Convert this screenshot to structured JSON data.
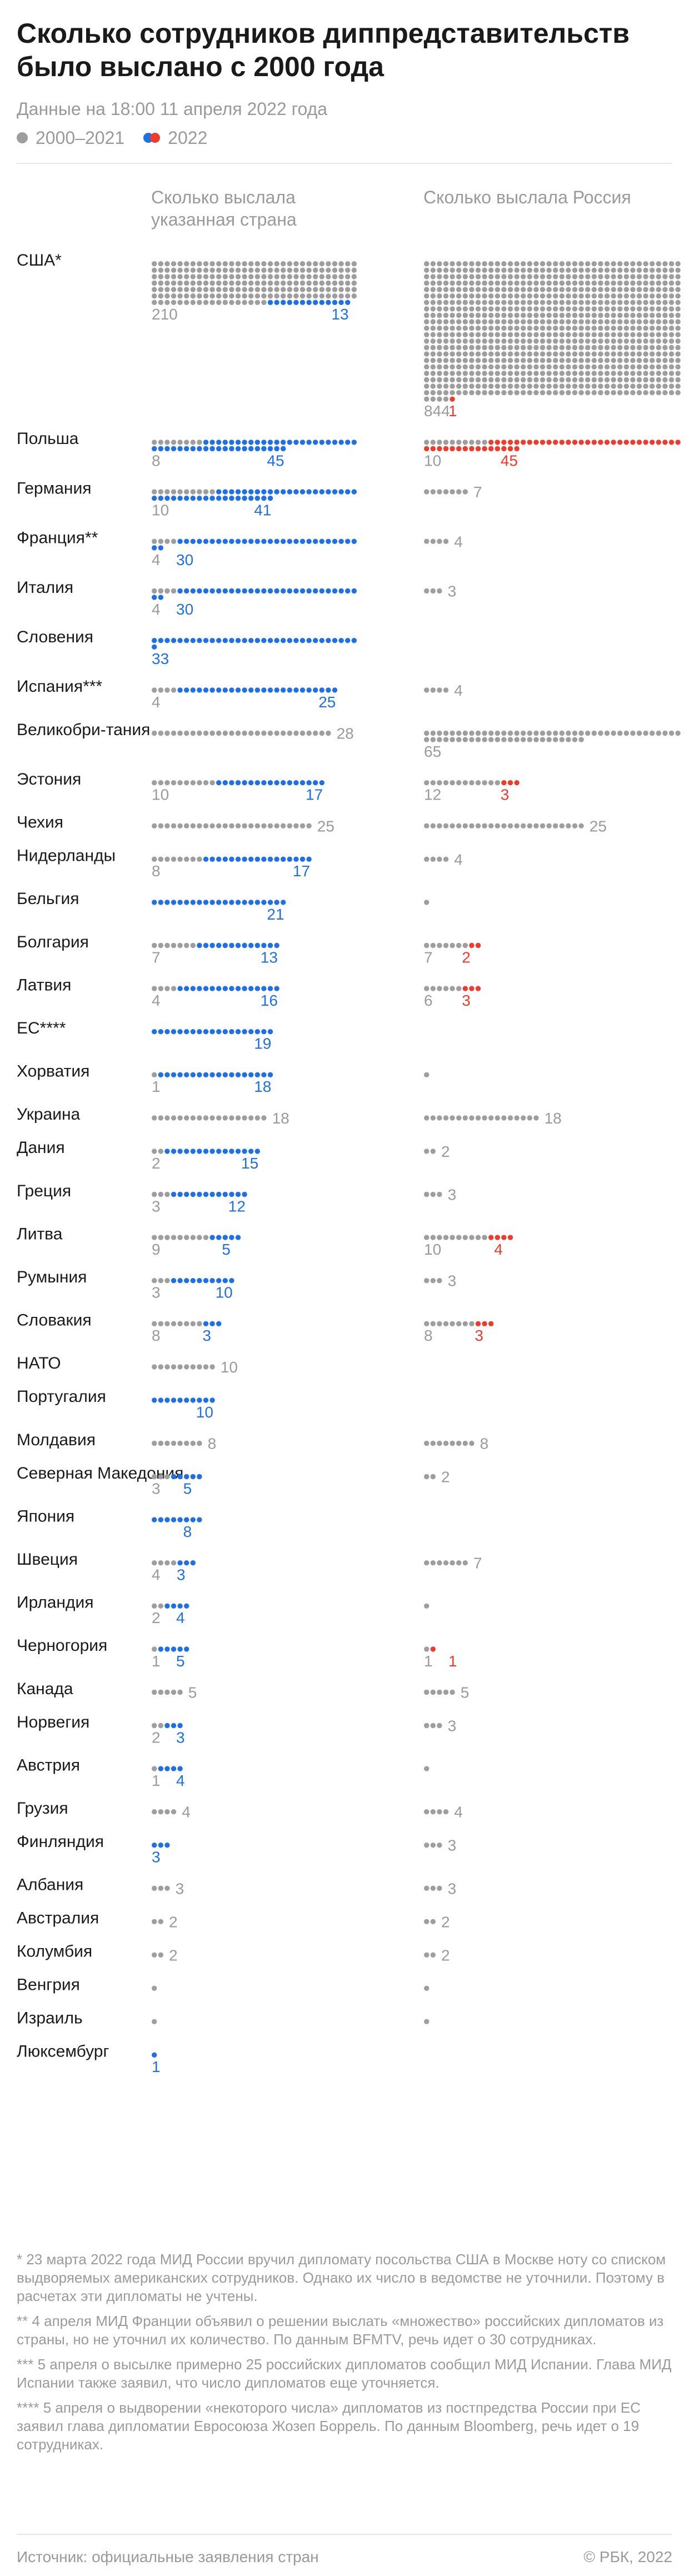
{
  "header": {
    "title": "Сколько сотрудников диппредставительств было выслано с 2000 года",
    "subtitle": "Данные на 18:00 11 апреля 2022 года",
    "legend": {
      "old": "2000–2021",
      "new": "2022"
    }
  },
  "columns": {
    "left": "Сколько выслала указанная страна",
    "right": "Сколько выслала Россия"
  },
  "colors": {
    "old": "#9e9e9e",
    "new_country": "#1f6fe5",
    "new_russia": "#ef3b2c"
  },
  "chart_data": {
    "type": "dot-matrix",
    "series": [
      {
        "name": "2000–2021"
      },
      {
        "name": "2022"
      }
    ],
    "rows": [
      {
        "country": "США*",
        "country_old": 210,
        "country_new": 13,
        "russia_old": 844,
        "russia_new": 1
      },
      {
        "country": "Польша",
        "country_old": 8,
        "country_new": 45,
        "russia_old": 10,
        "russia_new": 45
      },
      {
        "country": "Германия",
        "country_old": 10,
        "country_new": 41,
        "russia_old": 7,
        "russia_new": 0
      },
      {
        "country": "Франция**",
        "country_old": 4,
        "country_new": 30,
        "russia_old": 4,
        "russia_new": 0
      },
      {
        "country": "Италия",
        "country_old": 4,
        "country_new": 30,
        "russia_old": 3,
        "russia_new": 0
      },
      {
        "country": "Словения",
        "country_old": 0,
        "country_new": 33,
        "russia_old": 0,
        "russia_new": 0
      },
      {
        "country": "Испания***",
        "country_old": 4,
        "country_new": 25,
        "russia_old": 4,
        "russia_new": 0
      },
      {
        "country": "Великобри-тания",
        "country_old": 28,
        "country_new": 0,
        "russia_old": 65,
        "russia_new": 0
      },
      {
        "country": "Эстония",
        "country_old": 10,
        "country_new": 17,
        "russia_old": 12,
        "russia_new": 3
      },
      {
        "country": "Чехия",
        "country_old": 25,
        "country_new": 0,
        "russia_old": 25,
        "russia_new": 0
      },
      {
        "country": "Нидерланды",
        "country_old": 8,
        "country_new": 17,
        "russia_old": 4,
        "russia_new": 0
      },
      {
        "country": "Бельгия",
        "country_old": 0,
        "country_new": 21,
        "russia_old": 1,
        "russia_new": 0
      },
      {
        "country": "Болгария",
        "country_old": 7,
        "country_new": 13,
        "russia_old": 7,
        "russia_new": 2
      },
      {
        "country": "Латвия",
        "country_old": 4,
        "country_new": 16,
        "russia_old": 6,
        "russia_new": 3
      },
      {
        "country": "ЕС****",
        "country_old": 0,
        "country_new": 19,
        "russia_old": 0,
        "russia_new": 0
      },
      {
        "country": "Хорватия",
        "country_old": 1,
        "country_new": 18,
        "russia_old": 1,
        "russia_new": 0
      },
      {
        "country": "Украина",
        "country_old": 18,
        "country_new": 0,
        "russia_old": 18,
        "russia_new": 0
      },
      {
        "country": "Дания",
        "country_old": 2,
        "country_new": 15,
        "russia_old": 2,
        "russia_new": 0
      },
      {
        "country": "Греция",
        "country_old": 3,
        "country_new": 12,
        "russia_old": 3,
        "russia_new": 0
      },
      {
        "country": "Литва",
        "country_old": 9,
        "country_new": 5,
        "russia_old": 10,
        "russia_new": 4
      },
      {
        "country": "Румыния",
        "country_old": 3,
        "country_new": 10,
        "russia_old": 3,
        "russia_new": 0
      },
      {
        "country": "Словакия",
        "country_old": 8,
        "country_new": 3,
        "russia_old": 8,
        "russia_new": 3
      },
      {
        "country": "НАТО",
        "country_old": 10,
        "country_new": 0,
        "russia_old": 0,
        "russia_new": 0
      },
      {
        "country": "Португалия",
        "country_old": 0,
        "country_new": 10,
        "russia_old": 0,
        "russia_new": 0
      },
      {
        "country": "Молдавия",
        "country_old": 8,
        "country_new": 0,
        "russia_old": 8,
        "russia_new": 0
      },
      {
        "country": "Северная Македония",
        "country_old": 3,
        "country_new": 5,
        "russia_old": 2,
        "russia_new": 0
      },
      {
        "country": "Япония",
        "country_old": 0,
        "country_new": 8,
        "russia_old": 0,
        "russia_new": 0
      },
      {
        "country": "Швеция",
        "country_old": 4,
        "country_new": 3,
        "russia_old": 7,
        "russia_new": 0
      },
      {
        "country": "Ирландия",
        "country_old": 2,
        "country_new": 4,
        "russia_old": 1,
        "russia_new": 0
      },
      {
        "country": "Черногория",
        "country_old": 1,
        "country_new": 5,
        "russia_old": 1,
        "russia_new": 1
      },
      {
        "country": "Канада",
        "country_old": 5,
        "country_new": 0,
        "russia_old": 5,
        "russia_new": 0
      },
      {
        "country": "Норвегия",
        "country_old": 2,
        "country_new": 3,
        "russia_old": 3,
        "russia_new": 0
      },
      {
        "country": "Австрия",
        "country_old": 1,
        "country_new": 4,
        "russia_old": 1,
        "russia_new": 0
      },
      {
        "country": "Грузия",
        "country_old": 4,
        "country_new": 0,
        "russia_old": 4,
        "russia_new": 0
      },
      {
        "country": "Финляндия",
        "country_old": 0,
        "country_new": 3,
        "russia_old": 3,
        "russia_new": 0
      },
      {
        "country": "Албания",
        "country_old": 3,
        "country_new": 0,
        "russia_old": 3,
        "russia_new": 0
      },
      {
        "country": "Австралия",
        "country_old": 2,
        "country_new": 0,
        "russia_old": 2,
        "russia_new": 0
      },
      {
        "country": "Колумбия",
        "country_old": 2,
        "country_new": 0,
        "russia_old": 2,
        "russia_new": 0
      },
      {
        "country": "Венгрия",
        "country_old": 1,
        "country_new": 0,
        "russia_old": 1,
        "russia_new": 0
      },
      {
        "country": "Израиль",
        "country_old": 1,
        "country_new": 0,
        "russia_old": 1,
        "russia_new": 0
      },
      {
        "country": "Люксембург",
        "country_old": 0,
        "country_new": 1,
        "russia_old": 0,
        "russia_new": 0
      }
    ]
  },
  "notes": [
    "* 23 марта 2022 года МИД России вручил дипломату посольства США в Москве ноту со списком выдворяемых американских сотрудников. Однако их число в ведомстве не уточнили. Поэтому в расчетах эти дипломаты не учтены.",
    "** 4 апреля МИД Франции объявил о решении выслать «множество» российских дипломатов из страны, но не уточнил их количество. По данным BFMTV, речь идет о 30 сотрудниках.",
    "*** 5 апреля о высылке примерно 25 российских дипломатов сообщил МИД Испании. Глава МИД Испании также заявил, что число дипломатов еще уточняется.",
    "**** 5 апреля о выдворении «некоторого числа» дипломатов из постпредства России при ЕС заявил глава дипломатии Евросоюза Жозеп Боррель. По данным Bloomberg, речь идет о 19 сотрудниках."
  ],
  "footer": {
    "source": "Источник: официальные заявления стран",
    "credit": "© РБК, 2022"
  }
}
